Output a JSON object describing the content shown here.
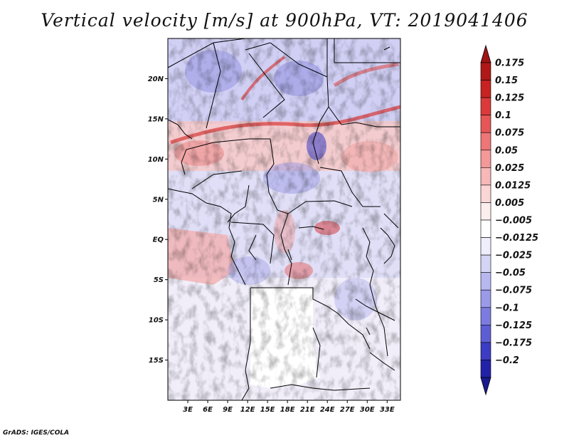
{
  "title": "Vertical velocity [m/s] at 900hPa, VT: 2019041406",
  "credit": "GrADS: IGES/COLA",
  "map": {
    "lon_range": [
      0,
      35
    ],
    "lat_range": [
      -20,
      25
    ],
    "lat_ticks": [
      {
        "value": 20,
        "label": "20N"
      },
      {
        "value": 15,
        "label": "15N"
      },
      {
        "value": 10,
        "label": "10N"
      },
      {
        "value": 5,
        "label": "5N"
      },
      {
        "value": 0,
        "label": "EQ"
      },
      {
        "value": -5,
        "label": "5S"
      },
      {
        "value": -10,
        "label": "10S"
      },
      {
        "value": -15,
        "label": "15S"
      }
    ],
    "lon_ticks": [
      {
        "value": 3,
        "label": "3E"
      },
      {
        "value": 6,
        "label": "6E"
      },
      {
        "value": 9,
        "label": "9E"
      },
      {
        "value": 12,
        "label": "12E"
      },
      {
        "value": 15,
        "label": "15E"
      },
      {
        "value": 18,
        "label": "18E"
      },
      {
        "value": 21,
        "label": "21E"
      },
      {
        "value": 24,
        "label": "24E"
      },
      {
        "value": 27,
        "label": "27E"
      },
      {
        "value": 30,
        "label": "30E"
      },
      {
        "value": 33,
        "label": "33E"
      }
    ]
  },
  "colorbar": {
    "levels": [
      {
        "label": "0.175",
        "color": "#b01818"
      },
      {
        "label": "0.15",
        "color": "#c82222"
      },
      {
        "label": "0.125",
        "color": "#dc3a3a"
      },
      {
        "label": "0.1",
        "color": "#e65656"
      },
      {
        "label": "0.075",
        "color": "#ee7676"
      },
      {
        "label": "0.05",
        "color": "#f49898"
      },
      {
        "label": "0.025",
        "color": "#f8b8b8"
      },
      {
        "label": "0.0125",
        "color": "#fbd6d6"
      },
      {
        "label": "0.005",
        "color": "#fdeeee"
      },
      {
        "label": "−0.005",
        "color": "#ffffff"
      },
      {
        "label": "−0.0125",
        "color": "#eeeefc"
      },
      {
        "label": "−0.025",
        "color": "#d4d4f6"
      },
      {
        "label": "−0.05",
        "color": "#b8b8f0"
      },
      {
        "label": "−0.075",
        "color": "#9a9ae8"
      },
      {
        "label": "−0.1",
        "color": "#7c7ce0"
      },
      {
        "label": "−0.125",
        "color": "#5e5ed4"
      },
      {
        "label": "−0.175",
        "color": "#3c3cc4"
      },
      {
        "label": "−0.2",
        "color": "#2222a8"
      }
    ],
    "top_arrow_color": "#a01414",
    "bottom_arrow_color": "#1a1a90"
  }
}
